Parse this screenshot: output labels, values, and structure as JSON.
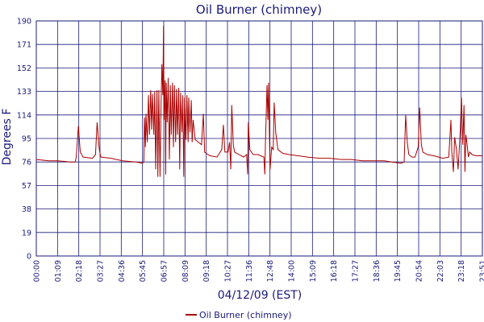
{
  "chart_data": {
    "type": "line",
    "title": "Oil Burner (chimney)",
    "xlabel": "04/12/09 (EST)",
    "ylabel": "Degrees F",
    "ylim": [
      0,
      190
    ],
    "yticks": [
      0,
      19,
      38,
      57,
      76,
      95,
      114,
      133,
      152,
      171,
      190
    ],
    "xlim": [
      "00:00",
      "23:51"
    ],
    "xticks": [
      "00:00",
      "01:09",
      "02:18",
      "03:27",
      "04:36",
      "05:45",
      "06:57",
      "08:09",
      "09:18",
      "10:27",
      "11:36",
      "12:48",
      "14:00",
      "15:09",
      "16:18",
      "17:27",
      "18:36",
      "19:45",
      "20:54",
      "22:03",
      "23:18",
      "23:51"
    ],
    "grid": true,
    "legend": "bottom-center",
    "series": [
      {
        "name": "Oil Burner (chimney)",
        "color": "#aa0000",
        "points": [
          [
            "00:00",
            78
          ],
          [
            "00:40",
            77
          ],
          [
            "01:09",
            77
          ],
          [
            "01:50",
            76
          ],
          [
            "02:05",
            76
          ],
          [
            "02:08",
            80
          ],
          [
            "02:15",
            105
          ],
          [
            "02:21",
            84
          ],
          [
            "02:30",
            80
          ],
          [
            "03:00",
            79
          ],
          [
            "03:10",
            82
          ],
          [
            "03:15",
            108
          ],
          [
            "03:22",
            86
          ],
          [
            "03:27",
            80
          ],
          [
            "04:00",
            79
          ],
          [
            "04:36",
            77
          ],
          [
            "05:20",
            76
          ],
          [
            "05:40",
            75
          ],
          [
            "05:45",
            76
          ],
          [
            "05:47",
            112
          ],
          [
            "05:50",
            88
          ],
          [
            "05:52",
            115
          ],
          [
            "05:56",
            92
          ],
          [
            "06:00",
            130
          ],
          [
            "06:03",
            98
          ],
          [
            "06:07",
            134
          ],
          [
            "06:10",
            102
          ],
          [
            "06:13",
            131
          ],
          [
            "06:17",
            98
          ],
          [
            "06:20",
            133
          ],
          [
            "06:23",
            70
          ],
          [
            "06:27",
            134
          ],
          [
            "06:30",
            64
          ],
          [
            "06:33",
            134
          ],
          [
            "06:37",
            64
          ],
          [
            "06:40",
            120
          ],
          [
            "06:43",
            155
          ],
          [
            "06:46",
            130
          ],
          [
            "06:48",
            186
          ],
          [
            "06:50",
            110
          ],
          [
            "06:53",
            142
          ],
          [
            "06:55",
            66
          ],
          [
            "06:57",
            140
          ],
          [
            "07:00",
            108
          ],
          [
            "07:03",
            144
          ],
          [
            "07:07",
            78
          ],
          [
            "07:10",
            138
          ],
          [
            "07:13",
            98
          ],
          [
            "07:17",
            140
          ],
          [
            "07:20",
            88
          ],
          [
            "07:23",
            138
          ],
          [
            "07:27",
            92
          ],
          [
            "07:30",
            135
          ],
          [
            "07:33",
            98
          ],
          [
            "07:37",
            136
          ],
          [
            "07:40",
            70
          ],
          [
            "07:43",
            132
          ],
          [
            "07:47",
            100
          ],
          [
            "07:50",
            130
          ],
          [
            "07:53",
            64
          ],
          [
            "07:56",
            128
          ],
          [
            "08:00",
            94
          ],
          [
            "08:03",
            130
          ],
          [
            "08:07",
            92
          ],
          [
            "08:09",
            128
          ],
          [
            "08:13",
            100
          ],
          [
            "08:17",
            126
          ],
          [
            "08:20",
            92
          ],
          [
            "08:23",
            110
          ],
          [
            "08:30",
            94
          ],
          [
            "08:40",
            92
          ],
          [
            "08:50",
            90
          ],
          [
            "08:56",
            115
          ],
          [
            "09:00",
            84
          ],
          [
            "09:10",
            82
          ],
          [
            "09:18",
            81
          ],
          [
            "09:40",
            80
          ],
          [
            "09:55",
            86
          ],
          [
            "10:00",
            106
          ],
          [
            "10:05",
            84
          ],
          [
            "10:15",
            84
          ],
          [
            "10:20",
            92
          ],
          [
            "10:24",
            70
          ],
          [
            "10:27",
            122
          ],
          [
            "10:32",
            90
          ],
          [
            "10:36",
            84
          ],
          [
            "10:50",
            82
          ],
          [
            "11:05",
            80
          ],
          [
            "11:15",
            82
          ],
          [
            "11:18",
            66
          ],
          [
            "11:20",
            108
          ],
          [
            "11:25",
            86
          ],
          [
            "11:30",
            84
          ],
          [
            "11:36",
            82
          ],
          [
            "11:50",
            82
          ],
          [
            "12:10",
            80
          ],
          [
            "12:13",
            66
          ],
          [
            "12:15",
            90
          ],
          [
            "12:20",
            138
          ],
          [
            "12:23",
            110
          ],
          [
            "12:25",
            140
          ],
          [
            "12:30",
            70
          ],
          [
            "12:35",
            88
          ],
          [
            "12:40",
            86
          ],
          [
            "12:43",
            124
          ],
          [
            "12:48",
            100
          ],
          [
            "12:55",
            86
          ],
          [
            "13:10",
            83
          ],
          [
            "13:30",
            82
          ],
          [
            "14:00",
            81
          ],
          [
            "14:30",
            80
          ],
          [
            "15:09",
            79
          ],
          [
            "15:40",
            79
          ],
          [
            "16:18",
            78
          ],
          [
            "16:50",
            78
          ],
          [
            "17:27",
            77
          ],
          [
            "18:00",
            77
          ],
          [
            "18:36",
            77
          ],
          [
            "19:00",
            76
          ],
          [
            "19:30",
            75
          ],
          [
            "19:40",
            76
          ],
          [
            "19:45",
            114
          ],
          [
            "19:50",
            92
          ],
          [
            "19:55",
            82
          ],
          [
            "20:05",
            80
          ],
          [
            "20:15",
            80
          ],
          [
            "20:25",
            88
          ],
          [
            "20:30",
            120
          ],
          [
            "20:35",
            90
          ],
          [
            "20:40",
            84
          ],
          [
            "20:54",
            82
          ],
          [
            "21:15",
            81
          ],
          [
            "21:30",
            80
          ],
          [
            "21:45",
            79
          ],
          [
            "22:03",
            80
          ],
          [
            "22:10",
            110
          ],
          [
            "22:13",
            84
          ],
          [
            "22:18",
            68
          ],
          [
            "22:22",
            96
          ],
          [
            "22:28",
            86
          ],
          [
            "22:33",
            70
          ],
          [
            "22:40",
            102
          ],
          [
            "22:44",
            128
          ],
          [
            "22:48",
            90
          ],
          [
            "22:52",
            122
          ],
          [
            "22:55",
            68
          ],
          [
            "22:58",
            98
          ],
          [
            "23:02",
            90
          ],
          [
            "23:06",
            80
          ],
          [
            "23:10",
            84
          ],
          [
            "23:18",
            82
          ],
          [
            "23:30",
            81
          ],
          [
            "23:51",
            81
          ]
        ]
      }
    ]
  }
}
